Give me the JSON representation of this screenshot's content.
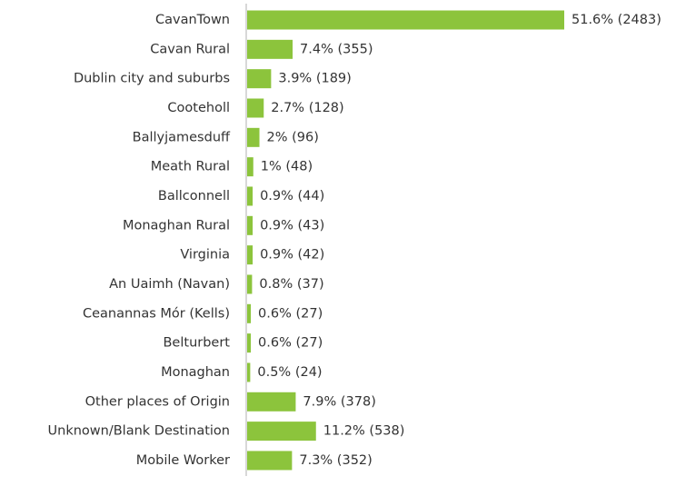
{
  "chart_data": {
    "type": "bar",
    "orientation": "horizontal",
    "color": "#8cc43c",
    "categories": [
      "CavanTown",
      "Cavan Rural",
      "Dublin city and suburbs",
      "Cooteholl",
      "Ballyjamesduff",
      "Meath Rural",
      "Ballconnell",
      "Monaghan Rural",
      "Virginia",
      "An Uaimh (Navan)",
      "Ceanannas Mór (Kells)",
      "Belturbert",
      "Monaghan",
      "Other places of Origin",
      "Unknown/Blank Destination",
      "Mobile Worker"
    ],
    "values": [
      51.6,
      7.4,
      3.9,
      2.7,
      2,
      1,
      0.9,
      0.9,
      0.9,
      0.8,
      0.6,
      0.6,
      0.5,
      7.9,
      11.2,
      7.3
    ],
    "value_labels": [
      "51.6% (2483)",
      "7.4% (355)",
      "3.9% (189)",
      "2.7% (128)",
      "2% (96)",
      "1% (48)",
      "0.9% (44)",
      "0.9% (43)",
      "0.9% (42)",
      "0.8% (37)",
      "0.6% (27)",
      "0.6% (27)",
      "0.5% (24)",
      "7.9% (378)",
      "11.2% (538)",
      "7.3% (352)"
    ]
  }
}
